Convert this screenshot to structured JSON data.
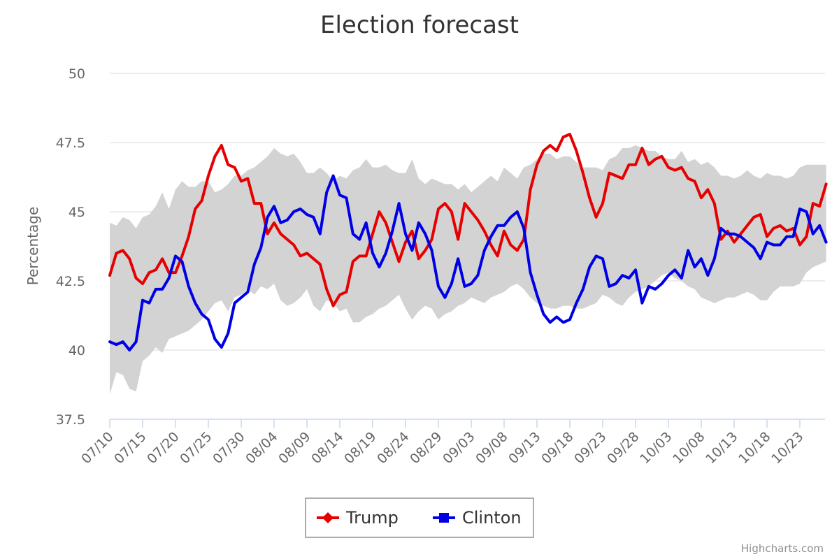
{
  "chart_data": {
    "type": "line",
    "title": "Election forecast",
    "ylabel": "Percentage",
    "xlabel": "",
    "ylim": [
      37.5,
      50
    ],
    "yticks": [
      37.5,
      40,
      42.5,
      45,
      47.5,
      50
    ],
    "ytick_labels": [
      "37.5",
      "40",
      "42.5",
      "45",
      "47.5",
      "50"
    ],
    "xtick_labels": [
      "07/10",
      "07/15",
      "07/20",
      "07/25",
      "07/30",
      "08/04",
      "08/09",
      "08/14",
      "08/19",
      "08/24",
      "08/29",
      "09/03",
      "09/08",
      "09/13",
      "09/18",
      "09/23",
      "09/28",
      "10/03",
      "10/08",
      "10/13",
      "10/18",
      "10/23"
    ],
    "x_start": "07/10",
    "grid": true,
    "legend_position": "bottom-center",
    "series": [
      {
        "name": "Trump",
        "color": "#e60000",
        "marker": "diamond",
        "values": [
          42.7,
          43.5,
          43.6,
          43.3,
          42.6,
          42.4,
          42.8,
          42.9,
          43.3,
          42.8,
          42.8,
          43.4,
          44.1,
          45.1,
          45.4,
          46.3,
          47.0,
          47.4,
          46.7,
          46.6,
          46.1,
          46.2,
          45.3,
          45.3,
          44.2,
          44.6,
          44.2,
          44.0,
          43.8,
          43.4,
          43.5,
          43.3,
          43.1,
          42.2,
          41.6,
          42.0,
          42.1,
          43.2,
          43.4,
          43.4,
          44.2,
          45.0,
          44.6,
          43.9,
          43.2,
          43.9,
          44.3,
          43.3,
          43.6,
          44.0,
          45.1,
          45.3,
          45.0,
          44.0,
          45.3,
          45.0,
          44.7,
          44.3,
          43.8,
          43.4,
          44.3,
          43.8,
          43.6,
          44.0,
          45.8,
          46.7,
          47.2,
          47.4,
          47.2,
          47.7,
          47.8,
          47.2,
          46.4,
          45.5,
          44.8,
          45.3,
          46.4,
          46.3,
          46.2,
          46.7,
          46.7,
          47.3,
          46.7,
          46.9,
          47.0,
          46.6,
          46.5,
          46.6,
          46.2,
          46.1,
          45.5,
          45.8,
          45.3,
          44.0,
          44.3,
          43.9,
          44.2,
          44.5,
          44.8,
          44.9,
          44.1,
          44.4,
          44.5,
          44.3,
          44.4,
          43.8,
          44.1,
          45.3,
          45.2,
          46.0
        ]
      },
      {
        "name": "Clinton",
        "color": "#0000e6",
        "marker": "square",
        "values": [
          40.3,
          40.2,
          40.3,
          40.0,
          40.3,
          41.8,
          41.7,
          42.2,
          42.2,
          42.6,
          43.4,
          43.2,
          42.3,
          41.7,
          41.3,
          41.1,
          40.4,
          40.1,
          40.6,
          41.7,
          41.9,
          42.1,
          43.1,
          43.7,
          44.8,
          45.2,
          44.6,
          44.7,
          45.0,
          45.1,
          44.9,
          44.8,
          44.2,
          45.7,
          46.3,
          45.6,
          45.5,
          44.2,
          44.0,
          44.6,
          43.5,
          43.0,
          43.5,
          44.3,
          45.3,
          44.2,
          43.6,
          44.6,
          44.2,
          43.6,
          42.3,
          41.9,
          42.4,
          43.3,
          42.3,
          42.4,
          42.7,
          43.6,
          44.1,
          44.5,
          44.5,
          44.8,
          45.0,
          44.4,
          42.8,
          42.0,
          41.3,
          41.0,
          41.2,
          41.0,
          41.1,
          41.7,
          42.2,
          43.0,
          43.4,
          43.3,
          42.3,
          42.4,
          42.7,
          42.6,
          42.9,
          41.7,
          42.3,
          42.2,
          42.4,
          42.7,
          42.9,
          42.6,
          43.6,
          43.0,
          43.3,
          42.7,
          43.3,
          44.4,
          44.2,
          44.2,
          44.1,
          43.9,
          43.7,
          43.3,
          43.9,
          43.8,
          43.8,
          44.1,
          44.1,
          45.1,
          45.0,
          44.2,
          44.5,
          43.9
        ]
      }
    ],
    "band": {
      "upper": [
        44.6,
        44.5,
        44.8,
        44.7,
        44.4,
        44.8,
        44.9,
        45.2,
        45.7,
        45.1,
        45.8,
        46.1,
        45.9,
        45.9,
        46.1,
        46.1,
        45.7,
        45.8,
        46.0,
        46.3,
        46.3,
        46.5,
        46.6,
        46.8,
        47.0,
        47.3,
        47.1,
        47.0,
        47.1,
        46.8,
        46.4,
        46.4,
        46.6,
        46.4,
        46.1,
        46.3,
        46.2,
        46.5,
        46.6,
        46.9,
        46.6,
        46.6,
        46.7,
        46.5,
        46.4,
        46.4,
        46.9,
        46.2,
        46.0,
        46.2,
        46.1,
        46.0,
        46.0,
        45.8,
        46.0,
        45.7,
        45.9,
        46.1,
        46.3,
        46.1,
        46.6,
        46.4,
        46.2,
        46.6,
        46.7,
        46.9,
        47.1,
        47.1,
        46.9,
        47.0,
        47.0,
        46.8,
        46.6,
        46.6,
        46.6,
        46.5,
        46.9,
        47.0,
        47.3,
        47.3,
        47.4,
        47.3,
        47.2,
        47.2,
        47.0,
        46.9,
        46.9,
        47.2,
        46.8,
        46.9,
        46.7,
        46.8,
        46.6,
        46.3,
        46.3,
        46.2,
        46.3,
        46.5,
        46.3,
        46.2,
        46.4,
        46.3,
        46.3,
        46.2,
        46.3,
        46.6,
        46.7,
        46.7,
        46.7,
        46.7
      ],
      "lower": [
        38.4,
        39.2,
        39.1,
        38.6,
        38.5,
        39.6,
        39.8,
        40.1,
        39.9,
        40.4,
        40.5,
        40.6,
        40.7,
        40.9,
        41.1,
        41.4,
        41.7,
        41.8,
        41.4,
        41.9,
        42.0,
        42.2,
        42.0,
        42.3,
        42.2,
        42.4,
        41.8,
        41.6,
        41.7,
        41.9,
        42.2,
        41.6,
        41.4,
        41.8,
        41.7,
        41.4,
        41.5,
        41.0,
        41.0,
        41.2,
        41.3,
        41.5,
        41.6,
        41.8,
        42.0,
        41.5,
        41.1,
        41.4,
        41.6,
        41.5,
        41.1,
        41.3,
        41.4,
        41.6,
        41.7,
        41.9,
        41.8,
        41.7,
        41.9,
        42.0,
        42.1,
        42.3,
        42.4,
        42.2,
        41.9,
        41.7,
        41.6,
        41.5,
        41.5,
        41.6,
        41.6,
        41.5,
        41.5,
        41.6,
        41.7,
        42.0,
        41.9,
        41.7,
        41.6,
        41.9,
        42.1,
        42.2,
        42.3,
        42.5,
        42.7,
        42.8,
        42.6,
        42.5,
        42.3,
        42.2,
        41.9,
        41.8,
        41.7,
        41.8,
        41.9,
        41.9,
        42.0,
        42.1,
        42.0,
        41.8,
        41.8,
        42.1,
        42.3,
        42.3,
        42.3,
        42.4,
        42.8,
        43.0,
        43.1,
        43.2
      ]
    }
  },
  "legend": {
    "items": [
      {
        "label": "Trump"
      },
      {
        "label": "Clinton"
      }
    ]
  },
  "credits": "Highcharts.com"
}
